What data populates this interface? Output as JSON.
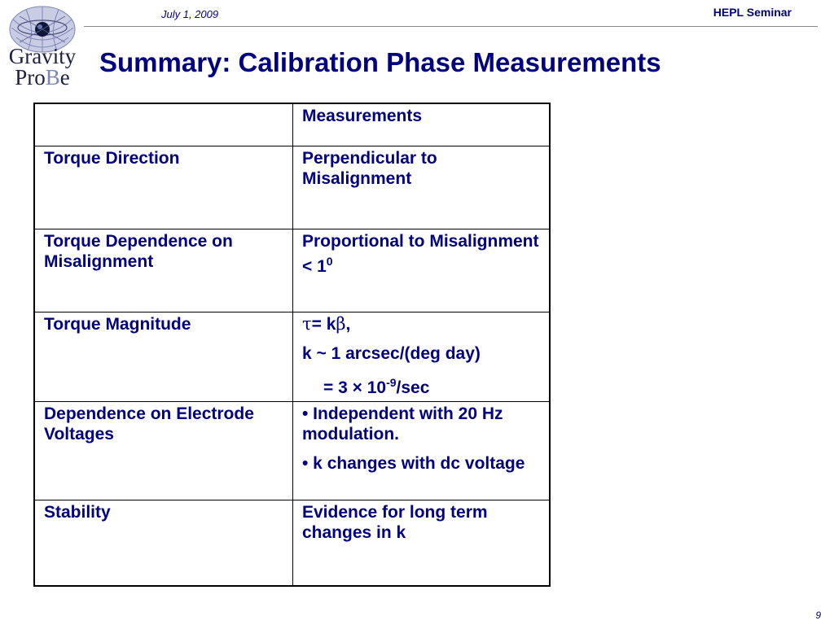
{
  "header": {
    "date": "July 1, 2009",
    "seminar": "HEPL Seminar"
  },
  "logo": {
    "line1": "Gravity",
    "line2_a": "Pro",
    "line2_b": "B",
    "line2_c": "e"
  },
  "title": "Summary: Calibration Phase Measurements",
  "table": {
    "header": {
      "col1": "",
      "col2": "Measurements"
    },
    "rows": [
      {
        "col1": "Torque Direction",
        "col2": "Perpendicular to Misalignment"
      },
      {
        "col1": "Torque Dependence on Misalignment",
        "col2_text": "Proportional to Misalignment < 1",
        "col2_sup": "0"
      },
      {
        "col1": "Torque Magnitude",
        "tau": "τ",
        "eq1": "= k",
        "beta": "β",
        "eq1_end": ",",
        "line2": "k ~ 1 arcsec/(deg day)",
        "line3_a": "= 3 × 10",
        "line3_sup": "-9",
        "line3_b": "/sec"
      },
      {
        "col1": "Dependence on Electrode Voltages",
        "bullet1": "• Independent with 20 Hz modulation.",
        "bullet2": "• k changes with dc voltage"
      },
      {
        "col1": "Stability",
        "col2": "Evidence for long term changes in k"
      }
    ]
  },
  "footer": {
    "page": "9"
  },
  "colors": {
    "text": "#000080",
    "rule": "#8a8a8a"
  }
}
